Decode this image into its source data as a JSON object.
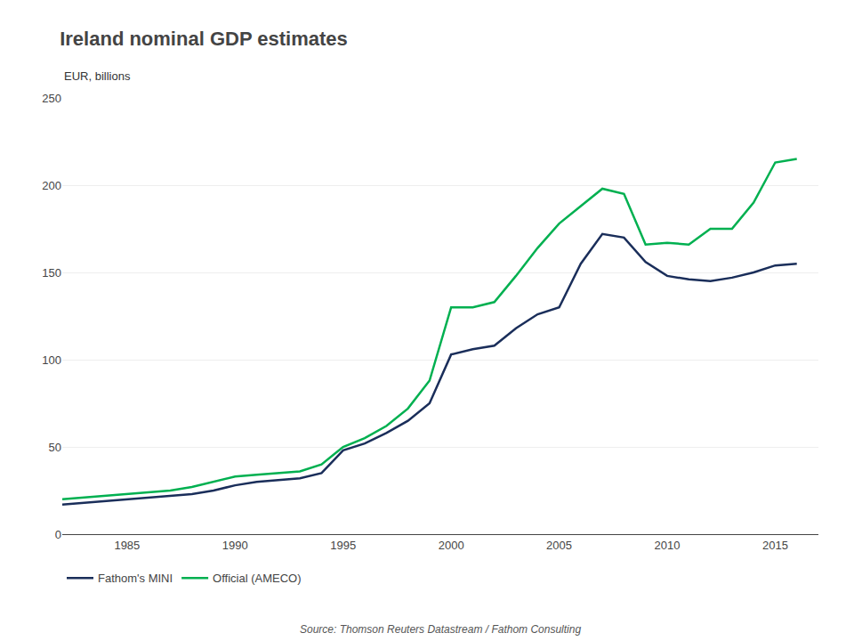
{
  "chart_data": {
    "type": "line",
    "title": "Ireland nominal GDP estimates",
    "ylabel": "EUR, billions",
    "annotations": [
      "Source: Thomson Reuters Datastream / Fathom Consulting"
    ],
    "xlim": [
      1982,
      2017
    ],
    "xticks": [
      1985,
      1990,
      1995,
      2000,
      2005,
      2010,
      2015
    ],
    "ylim": [
      0,
      250
    ],
    "yticks": [
      0,
      50,
      100,
      150,
      200,
      250
    ],
    "grid": true,
    "legend": "lower left",
    "series": [
      {
        "name": "Fathom's MINI",
        "color": "#1a2e5a",
        "x": [
          1982,
          1983,
          1984,
          1985,
          1986,
          1987,
          1988,
          1989,
          1990,
          1991,
          1992,
          1993,
          1994,
          1995,
          1996,
          1997,
          1998,
          1999,
          2000,
          2001,
          2002,
          2003,
          2004,
          2005,
          2006,
          2007,
          2008,
          2009,
          2010,
          2011,
          2012,
          2013,
          2014,
          2015,
          2016
        ],
        "values": [
          17,
          18,
          19,
          20,
          21,
          22,
          23,
          25,
          28,
          30,
          31,
          32,
          35,
          48,
          52,
          58,
          65,
          75,
          103,
          106,
          108,
          118,
          126,
          130,
          155,
          172,
          170,
          156,
          148,
          146,
          145,
          147,
          150,
          154,
          155
        ]
      },
      {
        "name": "Official (AMECO)",
        "color": "#00b050",
        "x": [
          1982,
          1983,
          1984,
          1985,
          1986,
          1987,
          1988,
          1989,
          1990,
          1991,
          1992,
          1993,
          1994,
          1995,
          1996,
          1997,
          1998,
          1999,
          2000,
          2001,
          2002,
          2003,
          2004,
          2005,
          2006,
          2007,
          2008,
          2009,
          2010,
          2011,
          2012,
          2013,
          2014,
          2015,
          2016
        ],
        "values": [
          20,
          21,
          22,
          23,
          24,
          25,
          27,
          30,
          33,
          34,
          35,
          36,
          40,
          50,
          55,
          62,
          72,
          88,
          130,
          130,
          133,
          148,
          164,
          178,
          188,
          198,
          195,
          166,
          167,
          166,
          175,
          175,
          190,
          213,
          215
        ]
      }
    ]
  }
}
